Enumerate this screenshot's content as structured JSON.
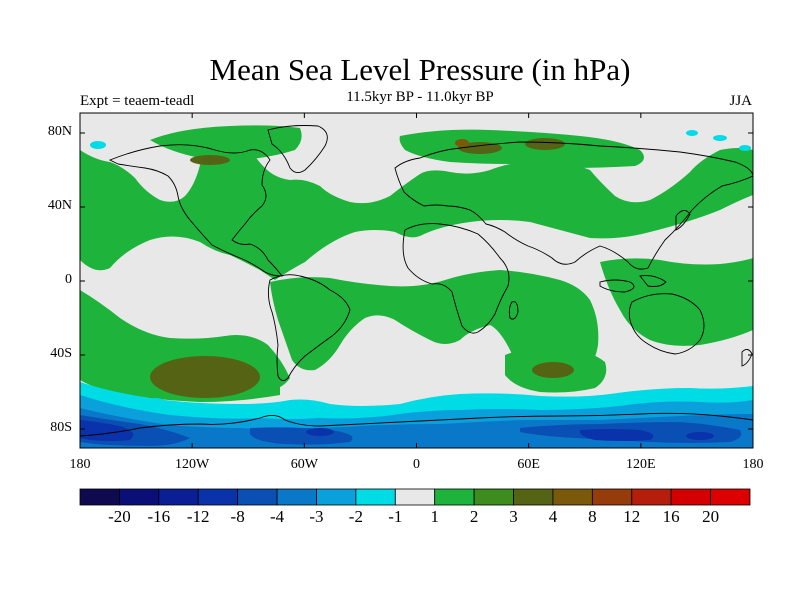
{
  "title": "Mean Sea Level Pressure (in hPa)",
  "experiment_label": "Expt = teaem-teadl",
  "period_label": "11.5kyr BP - 11.0kyr BP",
  "season_label": "JJA",
  "y_axis": {
    "ticks": [
      {
        "label": "80N",
        "lat": 80
      },
      {
        "label": "40N",
        "lat": 40
      },
      {
        "label": "0",
        "lat": 0
      },
      {
        "label": "40S",
        "lat": -40
      },
      {
        "label": "80S",
        "lat": -80
      }
    ]
  },
  "x_axis": {
    "ticks": [
      {
        "label": "180",
        "lon": -180
      },
      {
        "label": "120W",
        "lon": -120
      },
      {
        "label": "60W",
        "lon": -60
      },
      {
        "label": "0",
        "lon": 0
      },
      {
        "label": "60E",
        "lon": 60
      },
      {
        "label": "120E",
        "lon": 120
      },
      {
        "label": "180",
        "lon": 180
      }
    ]
  },
  "colorbar": {
    "labels": [
      "-20",
      "-16",
      "-12",
      "-8",
      "-4",
      "-3",
      "-2",
      "-1",
      "1",
      "2",
      "3",
      "4",
      "8",
      "12",
      "16",
      "20"
    ],
    "colors": [
      "#0f0a50",
      "#0a0f78",
      "#0a1e96",
      "#0a32aa",
      "#0a50b4",
      "#0a78c8",
      "#0aa0dc",
      "#00dce6",
      "#e8e8e8",
      "#1eb43c",
      "#3c8c1e",
      "#556414",
      "#7a5a0a",
      "#963c0a",
      "#b41e0a",
      "#d20000",
      "#dc0000"
    ]
  },
  "colors": {
    "neutral": "#e8e8e8",
    "green": "#1eb43c",
    "dark_green": "#556414",
    "olive": "#3c8c1e",
    "cyan": "#00dce6",
    "light_blue": "#0aa0dc",
    "mid_blue": "#0a78c8",
    "blue": "#0a50b4",
    "deep_blue": "#0a32aa",
    "coast": "#000000"
  }
}
